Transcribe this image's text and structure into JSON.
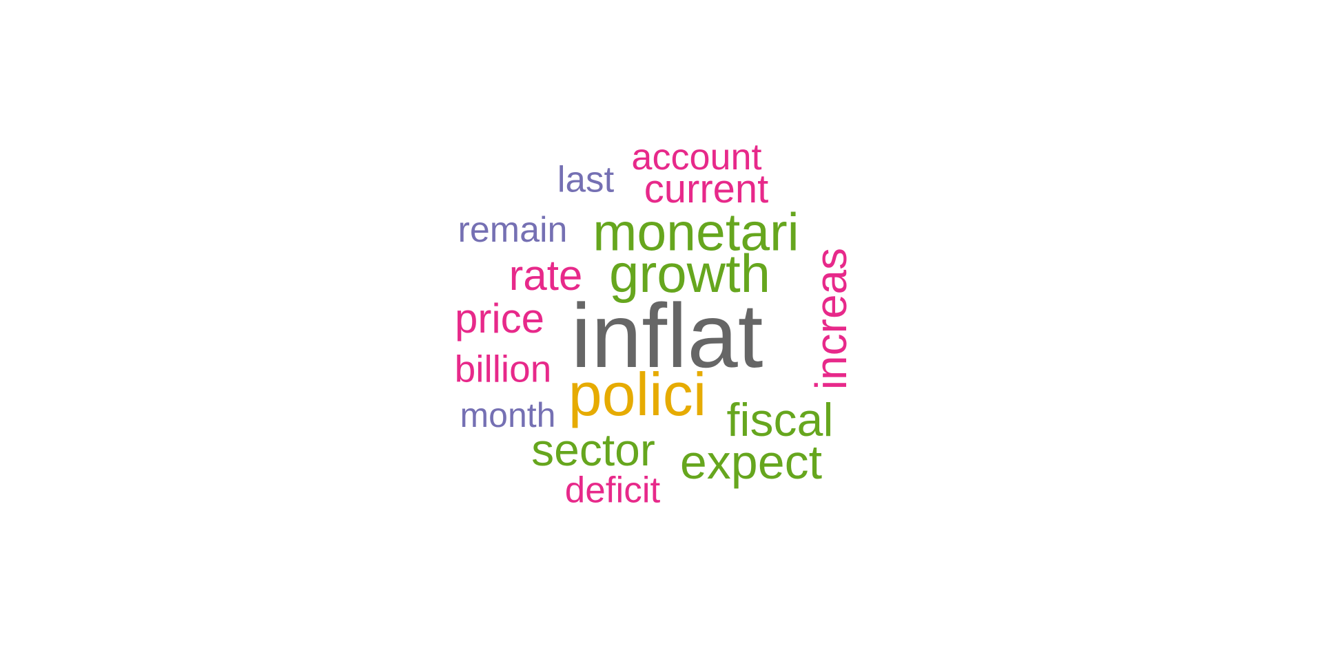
{
  "palette": {
    "pink": "#e7298a",
    "purple": "#7570b3",
    "green": "#66a61e",
    "gray": "#666666",
    "gold": "#e6ab02"
  },
  "words": [
    {
      "id": "account",
      "text": "account",
      "color": "#e7298a",
      "rotated": false
    },
    {
      "id": "last",
      "text": "last",
      "color": "#7570b3",
      "rotated": false
    },
    {
      "id": "current",
      "text": "current",
      "color": "#e7298a",
      "rotated": false
    },
    {
      "id": "remain",
      "text": "remain",
      "color": "#7570b3",
      "rotated": false
    },
    {
      "id": "monetari",
      "text": "monetari",
      "color": "#66a61e",
      "rotated": false
    },
    {
      "id": "rate",
      "text": "rate",
      "color": "#e7298a",
      "rotated": false
    },
    {
      "id": "growth",
      "text": "growth",
      "color": "#66a61e",
      "rotated": false
    },
    {
      "id": "price",
      "text": "price",
      "color": "#e7298a",
      "rotated": false
    },
    {
      "id": "inflat",
      "text": "inflat",
      "color": "#666666",
      "rotated": false
    },
    {
      "id": "increas",
      "text": "increas",
      "color": "#e7298a",
      "rotated": true
    },
    {
      "id": "billion",
      "text": "billion",
      "color": "#e7298a",
      "rotated": false
    },
    {
      "id": "polici",
      "text": "polici",
      "color": "#e6ab02",
      "rotated": false
    },
    {
      "id": "month",
      "text": "month",
      "color": "#7570b3",
      "rotated": false
    },
    {
      "id": "fiscal",
      "text": "fiscal",
      "color": "#66a61e",
      "rotated": false
    },
    {
      "id": "sector",
      "text": "sector",
      "color": "#66a61e",
      "rotated": false
    },
    {
      "id": "expect",
      "text": "expect",
      "color": "#66a61e",
      "rotated": false
    },
    {
      "id": "deficit",
      "text": "deficit",
      "color": "#e7298a",
      "rotated": false
    }
  ]
}
